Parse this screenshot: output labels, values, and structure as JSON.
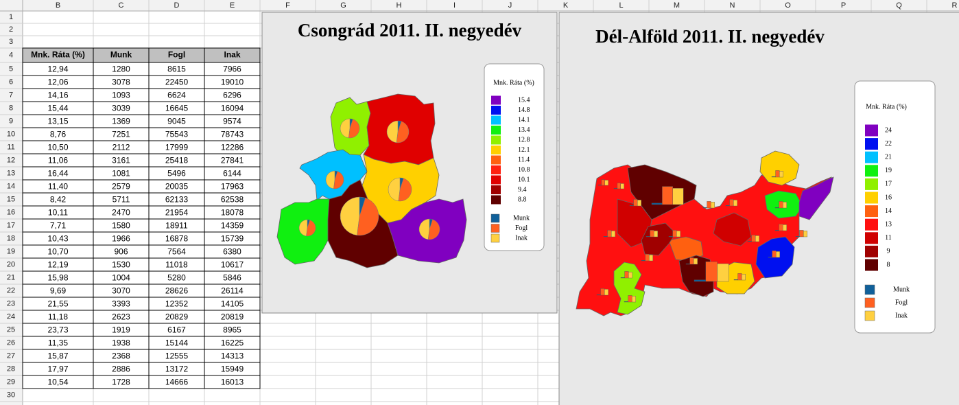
{
  "column_headers": [
    "B",
    "C",
    "D",
    "E",
    "F",
    "G",
    "H",
    "I",
    "J",
    "K",
    "L",
    "M",
    "N",
    "O",
    "P",
    "Q",
    "R"
  ],
  "row_numbers": [
    1,
    2,
    3,
    4,
    5,
    6,
    7,
    8,
    9,
    10,
    11,
    12,
    13,
    14,
    15,
    16,
    17,
    18,
    19,
    20,
    21,
    22,
    23,
    24,
    25,
    26,
    27,
    28,
    29,
    30
  ],
  "table": {
    "header": [
      "Mnk. Ráta (%)",
      "Munk",
      "Fogl",
      "Inak"
    ],
    "rows": [
      [
        "12,94",
        1280,
        8615,
        7966
      ],
      [
        "12,06",
        3078,
        22450,
        19010
      ],
      [
        "14,16",
        1093,
        6624,
        6296
      ],
      [
        "15,44",
        3039,
        16645,
        16094
      ],
      [
        "13,15",
        1369,
        9045,
        9574
      ],
      [
        "8,76",
        7251,
        75543,
        78743
      ],
      [
        "10,50",
        2112,
        17999,
        12286
      ],
      [
        "11,06",
        3161,
        25418,
        27841
      ],
      [
        "16,44",
        1081,
        5496,
        6144
      ],
      [
        "11,40",
        2579,
        20035,
        17963
      ],
      [
        "8,42",
        5711,
        62133,
        62538
      ],
      [
        "10,11",
        2470,
        21954,
        18078
      ],
      [
        "7,71",
        1580,
        18911,
        14359
      ],
      [
        "10,43",
        1966,
        16878,
        15739
      ],
      [
        "10,70",
        906,
        7564,
        6380
      ],
      [
        "12,19",
        1530,
        11018,
        10617
      ],
      [
        "15,98",
        1004,
        5280,
        5846
      ],
      [
        "9,69",
        3070,
        28626,
        26114
      ],
      [
        "21,55",
        3393,
        12352,
        14105
      ],
      [
        "11,18",
        2623,
        20829,
        20819
      ],
      [
        "23,73",
        1919,
        6167,
        8965
      ],
      [
        "11,35",
        1938,
        15144,
        16225
      ],
      [
        "15,87",
        2368,
        12555,
        14313
      ],
      [
        "17,97",
        2886,
        13172,
        15949
      ],
      [
        "10,54",
        1728,
        14666,
        16013
      ]
    ]
  },
  "charts": [
    {
      "title": "Csongrád 2011. II. negyedév",
      "legend_title": "Mnk. Ráta (%)",
      "legend": [
        {
          "label": 15.4,
          "color": "#8000c0"
        },
        {
          "label": 14.8,
          "color": "#0010f0"
        },
        {
          "label": 14.1,
          "color": "#00c0ff"
        },
        {
          "label": 13.4,
          "color": "#10f010"
        },
        {
          "label": 12.8,
          "color": "#90f000"
        },
        {
          "label": 12.1,
          "color": "#ffd000"
        },
        {
          "label": 11.4,
          "color": "#ff6010"
        },
        {
          "label": 10.8,
          "color": "#ff2010"
        },
        {
          "label": 10.1,
          "color": "#e00000"
        },
        {
          "label": 9.4,
          "color": "#a00000"
        },
        {
          "label": 8.8,
          "color": "#600000"
        }
      ],
      "series_legend": [
        {
          "name": "Munk",
          "color": "#10609a"
        },
        {
          "name": "Fogl",
          "color": "#ff6020"
        },
        {
          "name": "Inak",
          "color": "#ffd040"
        }
      ]
    },
    {
      "title": "Dél-Alföld 2011. II. negyedév",
      "legend_title": "Mnk. Ráta (%)",
      "legend": [
        {
          "label": 24,
          "color": "#8000c0"
        },
        {
          "label": 22,
          "color": "#0010f0"
        },
        {
          "label": 21,
          "color": "#00c0ff"
        },
        {
          "label": 19,
          "color": "#10f010"
        },
        {
          "label": 17,
          "color": "#90f000"
        },
        {
          "label": 16,
          "color": "#ffd000"
        },
        {
          "label": 14,
          "color": "#ff6010"
        },
        {
          "label": 13,
          "color": "#ff1010"
        },
        {
          "label": 11,
          "color": "#d00000"
        },
        {
          "label": 9,
          "color": "#a00000"
        },
        {
          "label": 8,
          "color": "#600000"
        }
      ],
      "series_legend": [
        {
          "name": "Munk",
          "color": "#10609a"
        },
        {
          "name": "Fogl",
          "color": "#ff6020"
        },
        {
          "name": "Inak",
          "color": "#ffd040"
        }
      ]
    }
  ]
}
